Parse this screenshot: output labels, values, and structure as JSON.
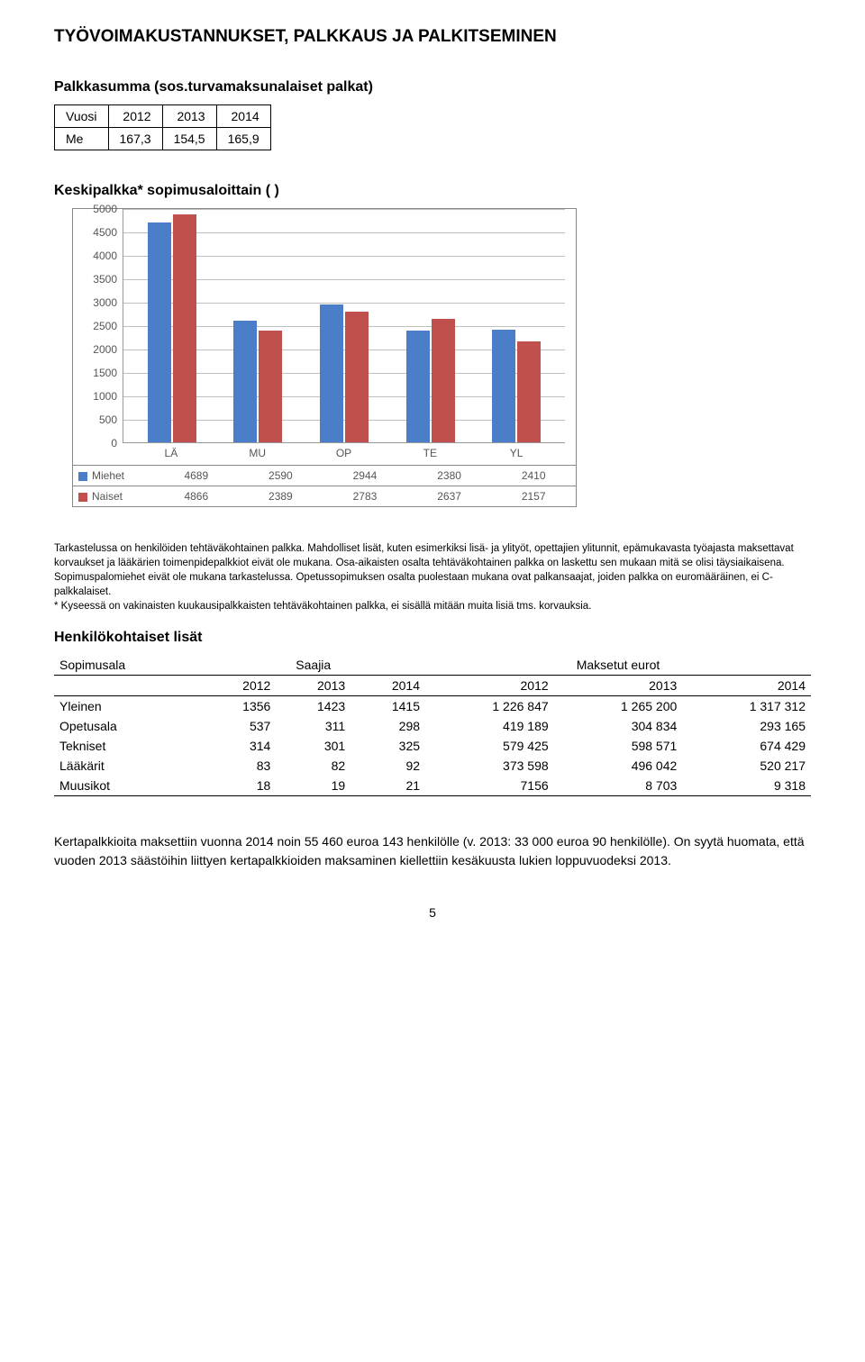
{
  "page_title": "TYÖVOIMAKUSTANNUKSET, PALKKAUS JA PALKITSEMINEN",
  "table1": {
    "title": "Palkkasumma (sos.turvamaksunalaiset palkat)",
    "headers": [
      "Vuosi",
      "2012",
      "2013",
      "2014"
    ],
    "row_label": "Me",
    "row": [
      "167,3",
      "154,5",
      "165,9"
    ]
  },
  "chart": {
    "title": "Keskipalkka* sopimusaloittain ( )",
    "type": "bar",
    "categories": [
      "LÄ",
      "MU",
      "OP",
      "TE",
      "YL"
    ],
    "series": [
      {
        "name": "Miehet",
        "color": "#4a7ec8",
        "values": [
          4689,
          2590,
          2944,
          2380,
          2410
        ]
      },
      {
        "name": "Naiset",
        "color": "#c0504d",
        "values": [
          4866,
          2389,
          2783,
          2637,
          2157
        ]
      }
    ],
    "ylim": [
      0,
      5000
    ],
    "ytick_step": 500,
    "grid_color": "#bfbfbf",
    "background_color": "#ffffff"
  },
  "footnote": "Tarkastelussa on henkilöiden tehtäväkohtainen palkka. Mahdolliset lisät, kuten esimerkiksi lisä- ja ylityöt, opettajien ylitunnit, epämukavasta työajasta maksettavat korvaukset ja lääkärien toimenpidepalkkiot eivät ole mukana. Osa-aikaisten osalta tehtäväkohtainen palkka on laskettu sen mukaan mitä se olisi täysiaikaisena. Sopimuspalomiehet eivät ole mukana tarkastelussa. Opetussopimuksen osalta puolestaan mukana ovat palkansaajat, joiden palkka on euromääräinen, ei C-palkkalaiset.\n* Kyseessä on vakinaisten kuukausipalkkaisten tehtäväkohtainen palkka, ei sisällä mitään muita lisiä tms. korvauksia.",
  "lisat": {
    "title": "Henkilökohtaiset lisät",
    "col1_label": "Sopimusala",
    "group1_label": "Saajia",
    "group2_label": "Maksetut eurot",
    "years": [
      "2012",
      "2013",
      "2014",
      "2012",
      "2013",
      "2014"
    ],
    "rows": [
      {
        "label": "Yleinen",
        "cells": [
          "1356",
          "1423",
          "1415",
          "1 226 847",
          "1 265 200",
          "1 317 312"
        ]
      },
      {
        "label": "Opetusala",
        "cells": [
          "537",
          "311",
          "298",
          "419 189",
          "304 834",
          "293 165"
        ]
      },
      {
        "label": "Tekniset",
        "cells": [
          "314",
          "301",
          "325",
          "579 425",
          "598 571",
          "674 429"
        ]
      },
      {
        "label": "Lääkärit",
        "cells": [
          "83",
          "82",
          "92",
          "373 598",
          "496 042",
          "520 217"
        ]
      },
      {
        "label": "Muusikot",
        "cells": [
          "18",
          "19",
          "21",
          "7156",
          "8 703",
          "9 318"
        ]
      }
    ]
  },
  "bottom_para": "Kertapalkkioita maksettiin vuonna 2014 noin 55 460 euroa 143 henkilölle (v. 2013: 33 000 euroa 90 henkilölle). On syytä huomata, että vuoden 2013 säästöihin liittyen kertapalkkioiden maksaminen kiellettiin kesäkuusta lukien loppuvuodeksi 2013.",
  "page_number": "5"
}
